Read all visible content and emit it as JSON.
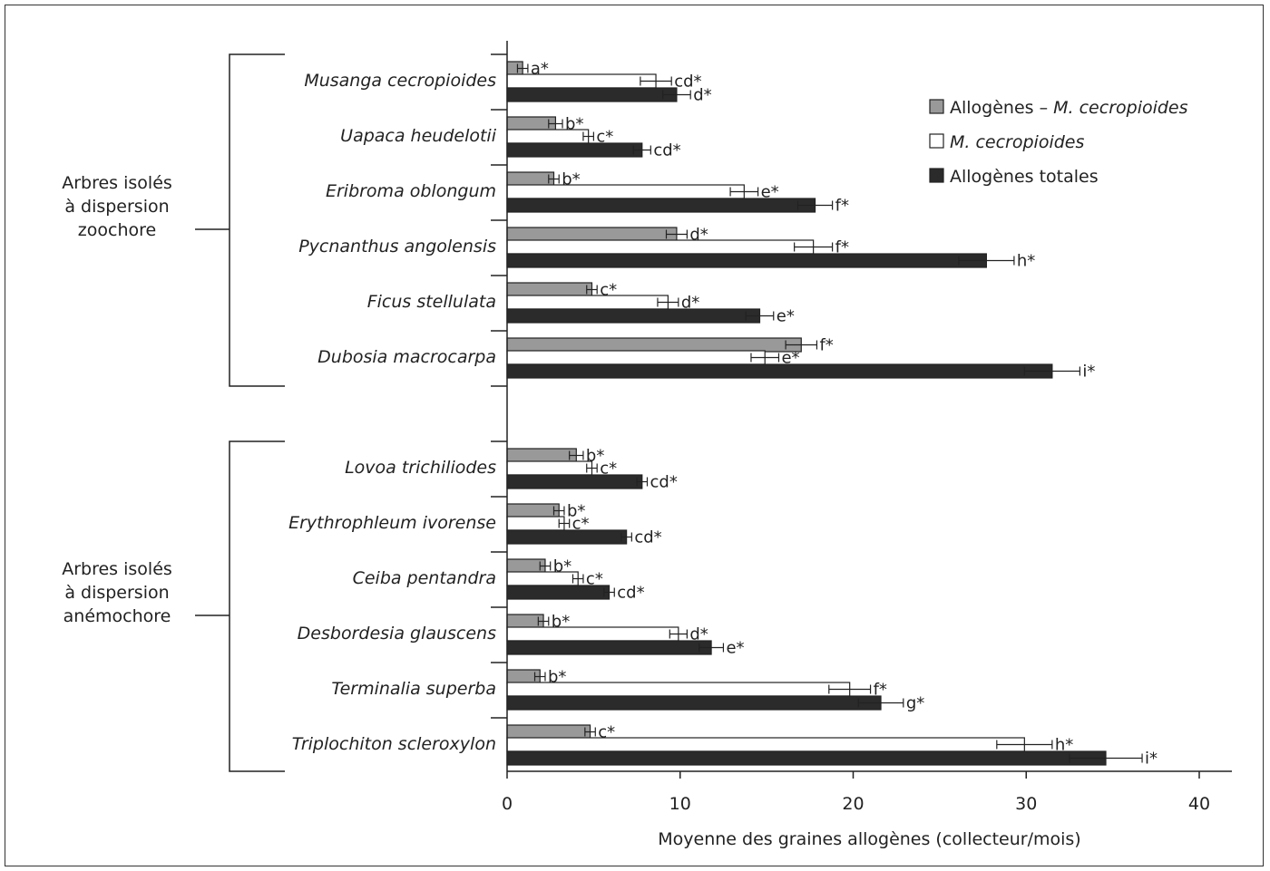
{
  "chart_data": {
    "type": "bar",
    "orientation": "horizontal",
    "xlabel": "Moyenne des graines allogènes (collecteur/mois)",
    "xlim": [
      0,
      40
    ],
    "xticks": [
      "0",
      "10",
      "20",
      "30",
      "40"
    ],
    "groups": [
      {
        "label_lines": [
          "Arbres isolés",
          "à dispersion",
          "zoochore"
        ],
        "start": 0,
        "end": 5
      },
      {
        "label_lines": [
          "Arbres isolés",
          "à dispersion",
          "anémochore"
        ],
        "start": 6,
        "end": 11
      }
    ],
    "legend": {
      "position": "top-right",
      "items": [
        {
          "series": "gray",
          "prefix": "Allogènes – ",
          "italic": "M. cecropioides",
          "suffix": ""
        },
        {
          "series": "white",
          "prefix": "",
          "italic": "M. cecropioides",
          "suffix": ""
        },
        {
          "series": "black",
          "prefix": "Allogènes totales",
          "italic": "",
          "suffix": ""
        }
      ]
    },
    "colors": {
      "gray": "#999999",
      "white": "#ffffff",
      "black": "#2b2b2b"
    },
    "categories": [
      "Musanga cecropioides",
      "Uapaca heudelotii",
      "Eribroma oblongum",
      "Pycnanthus angolensis",
      "Ficus stellulata",
      "Dubosia macrocarpa",
      "Lovoa trichiliodes",
      "Erythrophleum ivorense",
      "Ceiba pentandra",
      "Desbordesia glauscens",
      "Terminalia superba",
      "Triplochiton scleroxylon"
    ],
    "series": [
      {
        "key": "gray",
        "values": [
          0.9,
          2.8,
          2.7,
          9.8,
          4.9,
          17.0,
          4.0,
          3.0,
          2.2,
          2.1,
          1.9,
          4.8
        ],
        "errors": [
          0.3,
          0.4,
          0.3,
          0.6,
          0.3,
          0.9,
          0.4,
          0.3,
          0.3,
          0.3,
          0.3,
          0.3
        ],
        "labels": [
          "a*",
          "b*",
          "b*",
          "d*",
          "c*",
          "f*",
          "b*",
          "b*",
          "b*",
          "b*",
          "b*",
          "c*"
        ]
      },
      {
        "key": "white",
        "values": [
          8.6,
          4.7,
          13.7,
          17.7,
          9.3,
          14.9,
          4.9,
          3.3,
          4.1,
          9.9,
          19.8,
          29.9
        ],
        "errors": [
          0.9,
          0.3,
          0.8,
          1.1,
          0.6,
          0.8,
          0.3,
          0.3,
          0.3,
          0.5,
          1.2,
          1.6
        ],
        "labels": [
          "cd*",
          "c*",
          "e*",
          "f*",
          "d*",
          "e*",
          "c*",
          "c*",
          "c*",
          "d*",
          "f*",
          "h*"
        ]
      },
      {
        "key": "black",
        "values": [
          9.8,
          7.8,
          17.8,
          27.7,
          14.6,
          31.5,
          7.8,
          6.9,
          5.9,
          11.8,
          21.6,
          34.6
        ],
        "errors": [
          0.8,
          0.5,
          1.0,
          1.6,
          0.8,
          1.6,
          0.3,
          0.3,
          0.3,
          0.7,
          1.3,
          2.1
        ],
        "labels": [
          "d*",
          "cd*",
          "f*",
          "h*",
          "e*",
          "i*",
          "cd*",
          "cd*",
          "cd*",
          "e*",
          "g*",
          "i*"
        ]
      }
    ]
  }
}
